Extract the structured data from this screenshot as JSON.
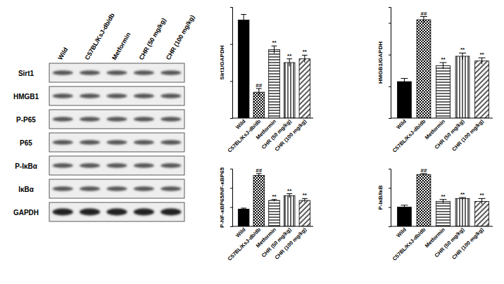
{
  "blot": {
    "rows": [
      "Sirt1",
      "HMGB1",
      "P-P65",
      "P65",
      "P-IκBα",
      "IκBα",
      "GAPDH"
    ],
    "columns": [
      "Wild",
      "C57BL/KsJ-db/db",
      "Metformin",
      "CHR (50 mg/kg)",
      "CHR (100 mg/kg)"
    ]
  },
  "chart_data": [
    {
      "type": "bar",
      "ylabel": "Sirt1/GAPDH",
      "categories": [
        "Wild",
        "C57BL/KsJ-db/db",
        "Metformin",
        "CHR (50 mg/kg)",
        "CHR (100 mg/kg)"
      ],
      "values": [
        0.53,
        0.14,
        0.37,
        0.3,
        0.32
      ],
      "errors": [
        0.03,
        0.02,
        0.02,
        0.02,
        0.02
      ],
      "annotations": [
        null,
        "##",
        "**",
        "**",
        "**"
      ],
      "color": "#000000",
      "ylim": [
        0,
        0.6
      ],
      "yticks": [
        0,
        0.2,
        0.4,
        0.6
      ],
      "tick_labels": "x"
    },
    {
      "type": "bar",
      "ylabel": "HMGB1/GAPDH",
      "categories": [
        "Wild",
        "C57BL/KsJ-db/db",
        "Metformin",
        "CHR (50 mg/kg)",
        "CHR (100 mg/kg)"
      ],
      "values": [
        0.23,
        0.62,
        0.33,
        0.39,
        0.36
      ],
      "errors": [
        0.02,
        0.02,
        0.02,
        0.02,
        0.02
      ],
      "annotations": [
        null,
        "##",
        "**",
        "**",
        "**"
      ],
      "color": "#000000",
      "ylim": [
        0,
        0.7
      ],
      "yticks": [
        0,
        0.2,
        0.4,
        0.6
      ],
      "tick_labels": "x"
    },
    {
      "type": "bar",
      "ylabel": "P-NF-κBP65/NF-κBP65",
      "categories": [
        "Wild",
        "C57BL/KsJ-db/db",
        "Metformin",
        "CHR (50 mg/kg)",
        "CHR (100 mg/kg)"
      ],
      "values": [
        0.18,
        0.53,
        0.27,
        0.32,
        0.27
      ],
      "errors": [
        0.01,
        0.02,
        0.01,
        0.02,
        0.02
      ],
      "annotations": [
        null,
        "##",
        "**",
        "**",
        "**"
      ],
      "color": "#000000",
      "ylim": [
        0,
        0.6
      ],
      "yticks": [
        0,
        0.2,
        0.4,
        0.6
      ],
      "tick_labels": "x"
    },
    {
      "type": "bar",
      "ylabel": "P-IκB/IκB",
      "categories": [
        "Wild",
        "C57BL/KsJ-db/db",
        "Metformin",
        "CHR (50 mg/kg)",
        "CHR (100 mg/kg)"
      ],
      "values": [
        0.2,
        0.54,
        0.26,
        0.29,
        0.26
      ],
      "errors": [
        0.02,
        0.01,
        0.02,
        0.01,
        0.03
      ],
      "annotations": [
        null,
        "##",
        "**",
        "**",
        "**"
      ],
      "color": "#000000",
      "ylim": [
        0,
        0.6
      ],
      "yticks": [
        0,
        0.2,
        0.4,
        0.6
      ],
      "tick_labels": "x"
    }
  ]
}
